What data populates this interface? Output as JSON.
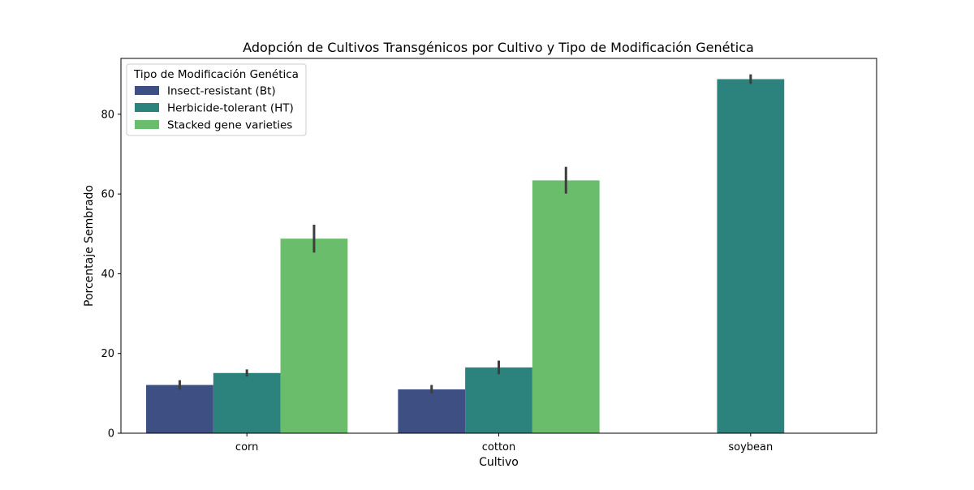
{
  "chart_data": {
    "type": "bar",
    "title": "Adopción de Cultivos Transgénicos por Cultivo y Tipo de Modificación Genética",
    "xlabel": "Cultivo",
    "ylabel": "Porcentaje Sembrado",
    "categories": [
      "corn",
      "cotton",
      "soybean"
    ],
    "ylim": [
      0,
      94
    ],
    "yticks": [
      0,
      20,
      40,
      60,
      80
    ],
    "grid": false,
    "legend": {
      "title": "Tipo de Modificación Genética",
      "placement": "top-left"
    },
    "series": [
      {
        "name": "Insect-resistant (Bt)",
        "color": "#3e4f84",
        "values": [
          12.1,
          11.0,
          null
        ],
        "error_low": [
          10.9,
          10.0,
          null
        ],
        "error_high": [
          13.3,
          12.1,
          null
        ]
      },
      {
        "name": "Herbicide-tolerant (HT)",
        "color": "#2c827c",
        "values": [
          15.1,
          16.5,
          88.8
        ],
        "error_low": [
          14.2,
          14.8,
          87.6
        ],
        "error_high": [
          16.0,
          18.2,
          90.0
        ]
      },
      {
        "name": "Stacked gene varieties",
        "color": "#6abe6b",
        "values": [
          48.8,
          63.4,
          null
        ],
        "error_low": [
          45.3,
          60.1,
          null
        ],
        "error_high": [
          52.3,
          66.8,
          null
        ]
      }
    ]
  }
}
